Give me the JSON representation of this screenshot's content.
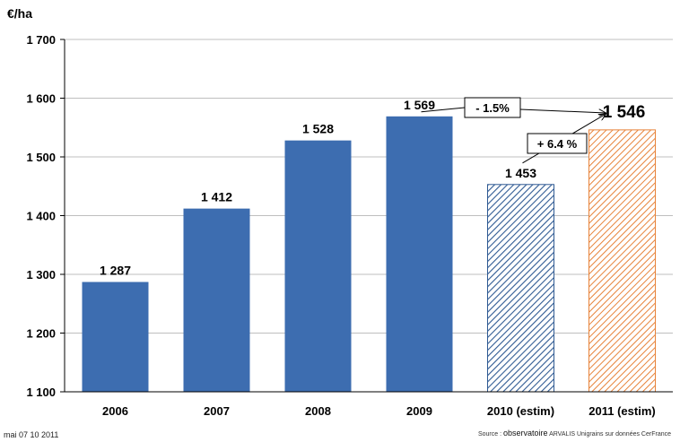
{
  "chart_data": {
    "type": "bar",
    "ylabel": "€/ha",
    "ylim": [
      1100,
      1700
    ],
    "yticks": [
      1100,
      1200,
      1300,
      1400,
      1500,
      1600,
      1700
    ],
    "ytick_labels": [
      "1 100",
      "1 200",
      "1 300",
      "1 400",
      "1 500",
      "1 600",
      "1 700"
    ],
    "grid": true,
    "categories": [
      "2006",
      "2007",
      "2008",
      "2009",
      "2010 (estim)",
      "2011 (estim)"
    ],
    "values": [
      1287,
      1412,
      1528,
      1569,
      1453,
      1546
    ],
    "value_labels": [
      "1 287",
      "1 412",
      "1 528",
      "1 569",
      "1 453",
      "1 546"
    ],
    "bar_styles": [
      "solid",
      "solid",
      "solid",
      "solid",
      "hatched",
      "hatched"
    ],
    "colors": {
      "solid": "#3d6db0",
      "hatch_2010": "#2f5a93",
      "hatch_2011": "#e7833a",
      "grid": "#bfbfbf",
      "axis": "#000000"
    },
    "annotations": [
      {
        "text": "- 1.5%",
        "from": "2009",
        "to": "2011 (estim)"
      },
      {
        "text": "+ 6.4 %",
        "from": "2010 (estim)",
        "to": "2011 (estim)"
      }
    ]
  },
  "footer": {
    "date": "mai 07 10 2011",
    "source_prefix": "Source :",
    "source_brand": "observatoire",
    "source_rest": "ARVALIS Unigrains sur données CerFrance"
  }
}
